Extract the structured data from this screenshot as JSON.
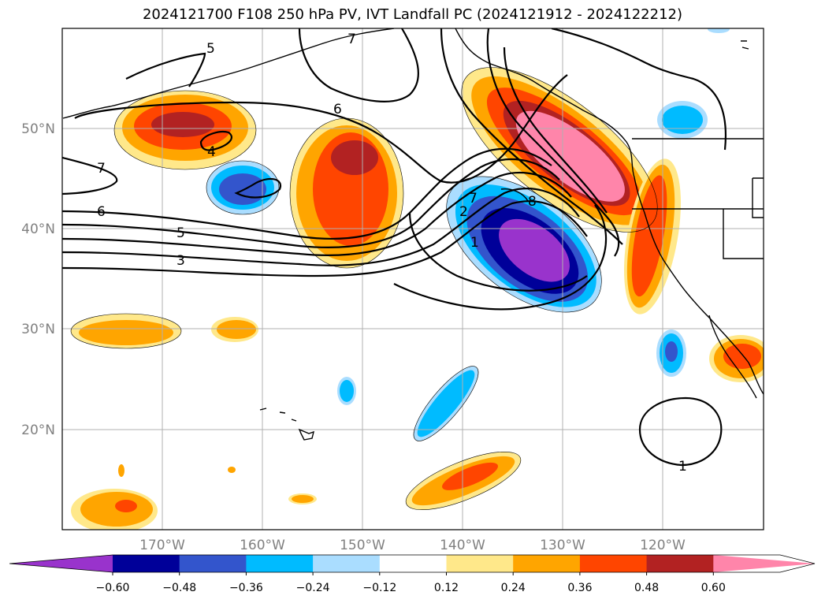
{
  "title": "2024121700 F108 250 hPa PV, IVT Landfall PC (2024121912 - 2024122212)",
  "lon_ticks": [
    "170°W",
    "160°W",
    "150°W",
    "140°W",
    "130°W",
    "120°W"
  ],
  "lat_ticks": [
    "50°N",
    "40°N",
    "30°N",
    "20°N"
  ],
  "colorbar": {
    "tick_labels": [
      "−0.60",
      "−0.48",
      "−0.36",
      "−0.24",
      "−0.12",
      "0.12",
      "0.24",
      "0.36",
      "0.48",
      "0.60"
    ],
    "colors": [
      "#9933cc",
      "#000099",
      "#3355cc",
      "#00bbff",
      "#aaddff",
      "#ffffff",
      "#ffe88a",
      "#ffa500",
      "#ff4500",
      "#b22222",
      "#ff85aa"
    ]
  },
  "contour_labels": [
    "5",
    "7",
    "6",
    "7",
    "4",
    "6",
    "5",
    "3",
    "7",
    "2",
    "1",
    "8",
    "1"
  ],
  "chart_data": {
    "type": "heatmap",
    "title": "2024121700 F108 250 hPa PV, IVT Landfall PC (2024121912 - 2024122212)",
    "x_range_deg": [
      -180,
      -110
    ],
    "y_range_deg": [
      10,
      60
    ],
    "color_levels": [
      -0.6,
      -0.48,
      -0.36,
      -0.24,
      -0.12,
      0.12,
      0.24,
      0.36,
      0.48,
      0.6
    ],
    "contour_levels": [
      1,
      2,
      3,
      4,
      5,
      6,
      7,
      8
    ],
    "positive_features": [
      {
        "lon": -130,
        "lat": 46,
        "max_level": 0.6
      },
      {
        "lon": -167,
        "lat": 50,
        "max_level": 0.48
      },
      {
        "lon": -153,
        "lat": 44,
        "max_level": 0.48
      },
      {
        "lon": -122,
        "lat": 39,
        "max_level": 0.36
      },
      {
        "lon": -139,
        "lat": 16,
        "max_level": 0.36
      },
      {
        "lon": -172,
        "lat": 29,
        "max_level": 0.24
      },
      {
        "lon": -114,
        "lat": 27,
        "max_level": 0.36
      }
    ],
    "negative_features": [
      {
        "lon": -135,
        "lat": 40,
        "min_level": -0.6
      },
      {
        "lon": -162,
        "lat": 43,
        "min_level": -0.36
      },
      {
        "lon": -142,
        "lat": 22,
        "min_level": -0.24
      },
      {
        "lon": -119,
        "lat": 27,
        "min_level": -0.36
      },
      {
        "lon": -120,
        "lat": 51,
        "min_level": -0.24
      }
    ]
  }
}
